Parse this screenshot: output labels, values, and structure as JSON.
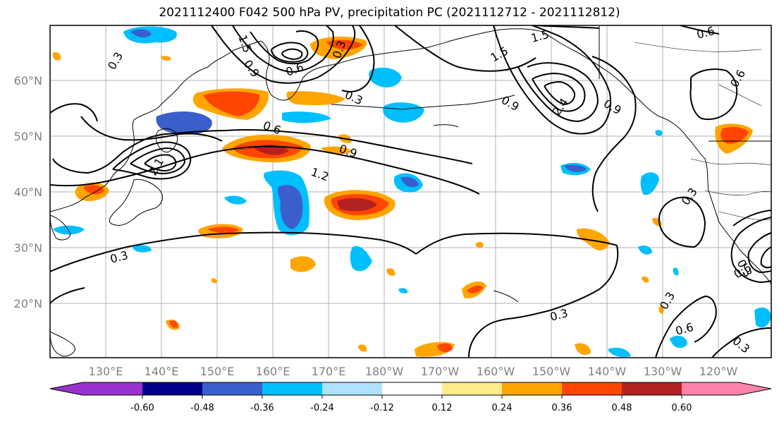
{
  "title": "2021112400 F042 500 hPa PV, precipitation PC (2021112712 - 2021112812)",
  "map": {
    "lat_ticks": [
      "60°N",
      "50°N",
      "40°N",
      "30°N",
      "20°N"
    ],
    "lon_ticks": [
      "130°E",
      "140°E",
      "150°E",
      "160°E",
      "170°E",
      "180°W",
      "170°W",
      "160°W",
      "150°W",
      "140°W",
      "130°W",
      "120°W"
    ],
    "contour_labels": [
      "0.3",
      "1.5",
      "0.9",
      "0.3",
      "2.4",
      "0.6",
      "1.5",
      "1.5",
      "0.9",
      "0.6",
      "0.3",
      "0.6",
      "0.9",
      "1.2",
      "2.1",
      "0.3",
      "0.3",
      "0.9",
      "0.6",
      "0.3",
      "0.3",
      "0.6",
      "0.3",
      "0.3",
      "0.6"
    ]
  },
  "colorbar": {
    "colors": [
      "#9932cc",
      "#00008b",
      "#3a5fcd",
      "#00bfff",
      "#b0e2ff",
      "#ffffff",
      "#ffec8b",
      "#ffa500",
      "#ff4500",
      "#b22222",
      "#ff82ab"
    ],
    "tick_labels": [
      "-0.60",
      "-0.48",
      "-0.36",
      "-0.24",
      "-0.12",
      "0.12",
      "0.24",
      "0.36",
      "0.48",
      "0.60"
    ]
  }
}
